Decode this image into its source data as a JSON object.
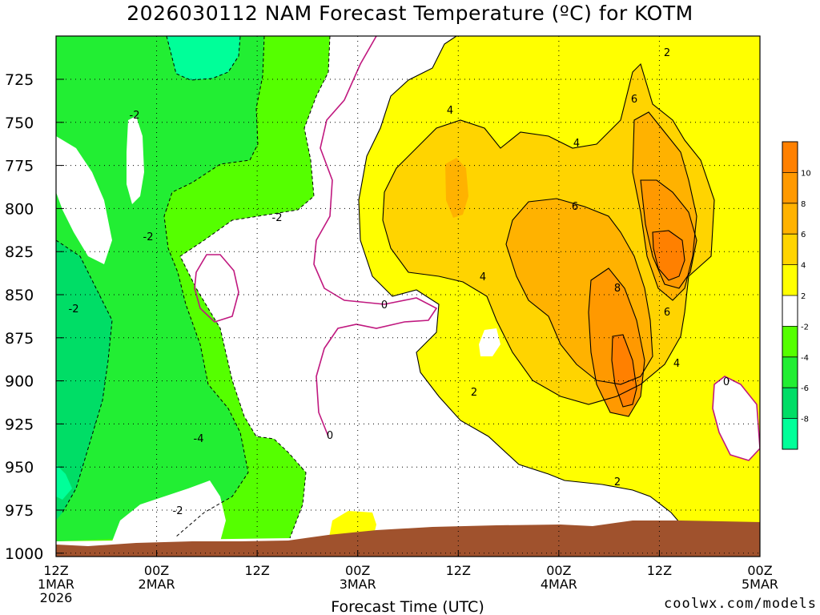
{
  "title": "2026030112 NAM Forecast Temperature (ºC) for KOTM",
  "xlabel": "Forecast Time (UTC)",
  "credit": "coolwx.com/models",
  "colors": {
    "terrain": "#A0522D",
    "zero_line": "#C0187F",
    "lt_m8": "#00FF99",
    "m8_m6": "#00DD66",
    "m6_m4": "#22EE33",
    "m4_m2": "#55FF00",
    "m2_2": "#FFFFFF",
    "c2_4": "#FFFF00",
    "c4_6": "#FFD400",
    "c6_8": "#FFB200",
    "c8_10": "#FF9900",
    "gt_10": "#FF8000"
  },
  "chart_data": {
    "type": "contour",
    "y_axis": {
      "ticks": [
        "725",
        "750",
        "775",
        "800",
        "825",
        "850",
        "875",
        "900",
        "925",
        "950",
        "975",
        "1000"
      ]
    },
    "x_axis": {
      "ticks": [
        {
          "line1": "12Z",
          "line2": "1MAR",
          "line3": "2026"
        },
        {
          "line1": "00Z",
          "line2": "2MAR",
          "line3": ""
        },
        {
          "line1": "12Z",
          "line2": "",
          "line3": ""
        },
        {
          "line1": "00Z",
          "line2": "3MAR",
          "line3": ""
        },
        {
          "line1": "12Z",
          "line2": "",
          "line3": ""
        },
        {
          "line1": "00Z",
          "line2": "4MAR",
          "line3": ""
        },
        {
          "line1": "12Z",
          "line2": "",
          "line3": ""
        },
        {
          "line1": "00Z",
          "line2": "5MAR",
          "line3": ""
        }
      ]
    },
    "colorbar": {
      "labels": [
        "10",
        "8",
        "6",
        "4",
        "2",
        "-2",
        "-4",
        "-6",
        "-8"
      ]
    },
    "contour_labels": [
      "-2",
      "-2",
      "-2",
      "-2",
      "-4",
      "-2",
      "0",
      "0",
      "4",
      "4",
      "4",
      "6",
      "6",
      "8",
      "6",
      "4",
      "2",
      "2",
      "2",
      "0"
    ]
  }
}
